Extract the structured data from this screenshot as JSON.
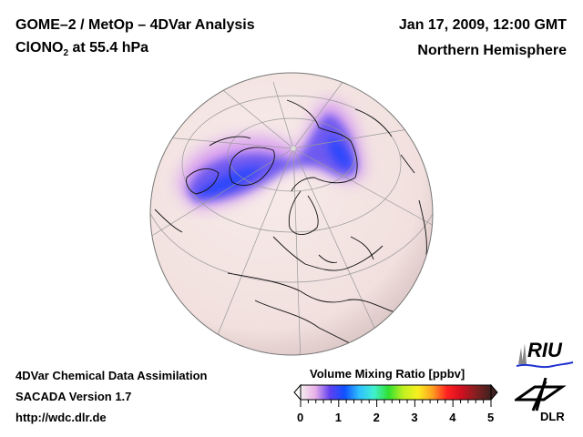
{
  "header": {
    "title_line1": "GOME–2 / MetOp – 4DVar Analysis",
    "species_prefix": "ClONO",
    "species_sub": "2",
    "species_suffix": " at 55.4 hPa",
    "date": "Jan 17, 2009, 12:00 GMT",
    "region": "Northern Hemisphere"
  },
  "footer": {
    "line1": "4DVar Chemical Data Assimilation",
    "line2": "SACADA Version 1.7",
    "line3": "http://wdc.dlr.de"
  },
  "colorbar": {
    "title": "Volume Mixing Ratio [ppbv]",
    "ticks": [
      "0",
      "1",
      "2",
      "3",
      "4",
      "5"
    ],
    "range": [
      0,
      5
    ],
    "colors": [
      "#f6efef",
      "#e8b0e8",
      "#6040f0",
      "#1050ff",
      "#30c0ff",
      "#40f0d0",
      "#30e030",
      "#c0f020",
      "#f8f020",
      "#ffa020",
      "#ff2020",
      "#d01020",
      "#802020",
      "#402020"
    ]
  },
  "logos": {
    "riu": "RIU",
    "dlr": "DLR"
  }
}
